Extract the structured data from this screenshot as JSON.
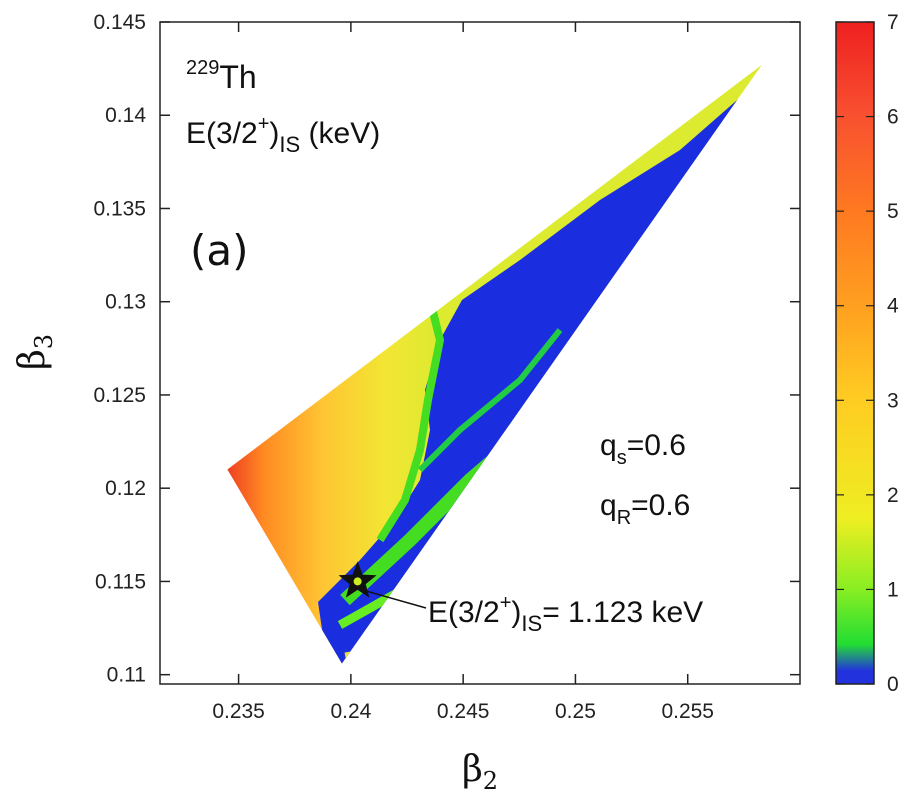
{
  "chart_data": {
    "type": "heatmap",
    "panel_label": "(a)",
    "nucleus": {
      "mass": "229",
      "element": "Th"
    },
    "quantity": {
      "base": "E(3/2",
      "sup": "+",
      "close": ")",
      "sub": "IS",
      "unit": " (keV)"
    },
    "xlabel": {
      "base": "β",
      "sub": "2"
    },
    "ylabel": {
      "base": "β",
      "sub": "3"
    },
    "xlim": [
      0.2315,
      0.26
    ],
    "ylim": [
      0.1095,
      0.145
    ],
    "x_ticks": [
      0.235,
      0.24,
      0.245,
      0.25,
      0.255
    ],
    "x_tick_labels": [
      "0.235",
      "0.24",
      "0.245",
      "0.25",
      "0.255"
    ],
    "y_ticks": [
      0.11,
      0.115,
      0.12,
      0.125,
      0.13,
      0.135,
      0.14,
      0.145
    ],
    "y_tick_labels": [
      "0.11",
      "0.115",
      "0.12",
      "0.125",
      "0.13",
      "0.135",
      "0.14",
      "0.145"
    ],
    "colorbar": {
      "range": [
        0,
        7
      ],
      "ticks": [
        0,
        1,
        2,
        3,
        4,
        5,
        6,
        7
      ],
      "tick_labels": [
        "0",
        "1",
        "2",
        "3",
        "4",
        "5",
        "6",
        "7"
      ],
      "colors": [
        "#2233dd",
        "#22dd22",
        "#eeee22",
        "#ffcc22",
        "#ffa020",
        "#ff7a20",
        "#f85030",
        "#ee2020"
      ]
    },
    "region": {
      "vertices": [
        [
          0.2345,
          0.121
        ],
        [
          0.2396,
          0.1106
        ],
        [
          0.2583,
          0.1427
        ]
      ],
      "description_values": {
        "upper_left_max": 6.5,
        "lower_right_min": 0
      }
    },
    "parameters": [
      {
        "base": "q",
        "sub": "s",
        "value": "=0.6"
      },
      {
        "base": "q",
        "sub": "R",
        "value": "=0.6"
      }
    ],
    "marker": {
      "x": 0.2403,
      "y": 0.115,
      "label": {
        "base": "E(3/2",
        "sup": "+",
        "close": ")",
        "sub": "IS",
        "value": "= 1.123 keV"
      }
    }
  }
}
